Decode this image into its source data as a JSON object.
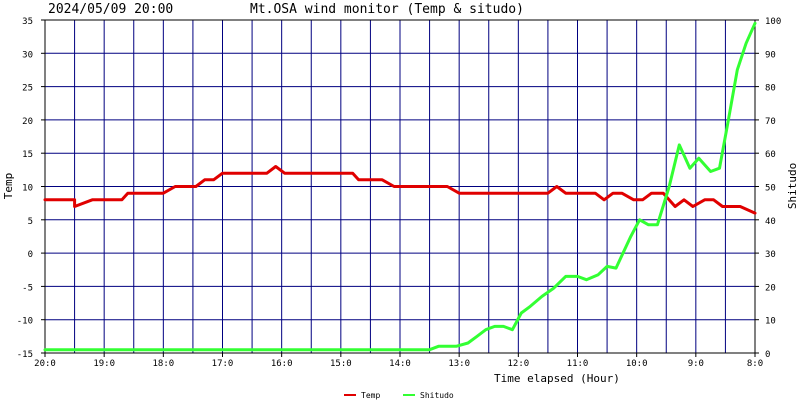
{
  "chart_data": {
    "type": "line",
    "timestamp": "2024/05/09 20:00",
    "title": "Mt.OSA wind monitor (Temp & situdo)",
    "xlabel": "Time elapsed (Hour)",
    "ylabel_left": "Temp",
    "ylabel_right": "Shitudo",
    "x_range": [
      20,
      8
    ],
    "x_ticks": [
      {
        "value": 20,
        "label": "20:0"
      },
      {
        "value": 19,
        "label": "19:0"
      },
      {
        "value": 18,
        "label": "18:0"
      },
      {
        "value": 17,
        "label": "17:0"
      },
      {
        "value": 16,
        "label": "16:0"
      },
      {
        "value": 15,
        "label": "15:0"
      },
      {
        "value": 14,
        "label": "14:0"
      },
      {
        "value": 13,
        "label": "13:0"
      },
      {
        "value": 12,
        "label": "12:0"
      },
      {
        "value": 11,
        "label": "11:0"
      },
      {
        "value": 10,
        "label": "10:0"
      },
      {
        "value": 9,
        "label": "9:0"
      },
      {
        "value": 8,
        "label": "8:0"
      }
    ],
    "ylim_left": [
      -15,
      35
    ],
    "yticks_left": [
      "35",
      "30",
      "25",
      "20",
      "15",
      "10",
      "5",
      "0",
      "-5",
      "-10",
      "-15"
    ],
    "ylim_right": [
      0,
      100
    ],
    "yticks_right": [
      "100",
      "90",
      "80",
      "70",
      "60",
      "50",
      "40",
      "30",
      "20",
      "10",
      "0"
    ],
    "grid": true,
    "legend_position": "bottom-center",
    "series": [
      {
        "name": "Temp",
        "axis": "left",
        "color": "#e00000",
        "points": [
          [
            20.0,
            8
          ],
          [
            19.5,
            8
          ],
          [
            19.5,
            7
          ],
          [
            19.2,
            8
          ],
          [
            18.7,
            8
          ],
          [
            18.6,
            9
          ],
          [
            18.0,
            9
          ],
          [
            17.8,
            10
          ],
          [
            17.45,
            10
          ],
          [
            17.3,
            11
          ],
          [
            17.15,
            11
          ],
          [
            17.0,
            12
          ],
          [
            16.25,
            12
          ],
          [
            16.1,
            13
          ],
          [
            15.95,
            12
          ],
          [
            14.8,
            12
          ],
          [
            14.7,
            11
          ],
          [
            14.3,
            11
          ],
          [
            14.1,
            10
          ],
          [
            13.2,
            10
          ],
          [
            13.0,
            9
          ],
          [
            11.5,
            9
          ],
          [
            11.35,
            10
          ],
          [
            11.2,
            9
          ],
          [
            10.7,
            9
          ],
          [
            10.55,
            8
          ],
          [
            10.4,
            9
          ],
          [
            10.25,
            9
          ],
          [
            10.05,
            8
          ],
          [
            9.9,
            8
          ],
          [
            9.75,
            9
          ],
          [
            9.55,
            9
          ],
          [
            9.35,
            7
          ],
          [
            9.2,
            8
          ],
          [
            9.05,
            7
          ],
          [
            8.85,
            8
          ],
          [
            8.7,
            8
          ],
          [
            8.55,
            7
          ],
          [
            8.25,
            7
          ],
          [
            8.0,
            6
          ]
        ]
      },
      {
        "name": "Shitudo",
        "axis": "right",
        "color": "#33ff33",
        "points": [
          [
            20.0,
            1
          ],
          [
            13.5,
            1
          ],
          [
            13.35,
            2
          ],
          [
            13.05,
            2
          ],
          [
            12.85,
            3
          ],
          [
            12.7,
            5
          ],
          [
            12.55,
            7
          ],
          [
            12.4,
            8
          ],
          [
            12.25,
            8
          ],
          [
            12.1,
            7
          ],
          [
            11.95,
            12
          ],
          [
            11.8,
            14
          ],
          [
            11.6,
            17
          ],
          [
            11.4,
            19.5
          ],
          [
            11.2,
            23
          ],
          [
            11.0,
            23
          ],
          [
            10.85,
            22
          ],
          [
            10.65,
            23.5
          ],
          [
            10.5,
            26
          ],
          [
            10.35,
            25.5
          ],
          [
            10.1,
            35
          ],
          [
            9.95,
            40
          ],
          [
            9.8,
            38.5
          ],
          [
            9.65,
            38.5
          ],
          [
            9.45,
            50
          ],
          [
            9.28,
            62.5
          ],
          [
            9.1,
            55.5
          ],
          [
            8.95,
            58.5
          ],
          [
            8.75,
            54.5
          ],
          [
            8.6,
            55.5
          ],
          [
            8.45,
            70
          ],
          [
            8.3,
            85
          ],
          [
            8.15,
            93
          ],
          [
            8.0,
            99
          ]
        ]
      }
    ]
  }
}
